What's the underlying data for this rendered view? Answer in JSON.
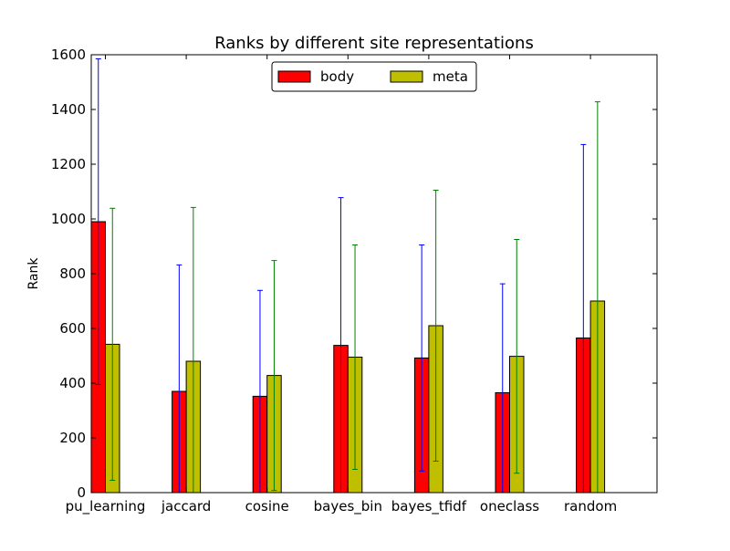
{
  "chart_data": {
    "type": "bar",
    "title": "Ranks by different site representations",
    "xlabel": "",
    "ylabel": "Rank",
    "ylim": [
      0,
      1600
    ],
    "yticks": [
      0,
      200,
      400,
      600,
      800,
      1000,
      1200,
      1400,
      1600
    ],
    "grid": false,
    "legend_position": "top-center",
    "categories": [
      "pu_learning",
      "jaccard",
      "cosine",
      "bayes_bin",
      "bayes_tfidf",
      "oneclass",
      "random"
    ],
    "series": [
      {
        "name": "body",
        "color": "#ff0000",
        "error_color": "#0000ff",
        "values": [
          990,
          370,
          352,
          538,
          492,
          365,
          565
        ],
        "errors": [
          595,
          462,
          387,
          540,
          413,
          398,
          707
        ]
      },
      {
        "name": "meta",
        "color": "#bfbf00",
        "error_color": "#008000",
        "values": [
          542,
          480,
          428,
          495,
          610,
          498,
          700
        ],
        "errors": [
          497,
          562,
          420,
          410,
          495,
          427,
          728
        ]
      }
    ]
  }
}
